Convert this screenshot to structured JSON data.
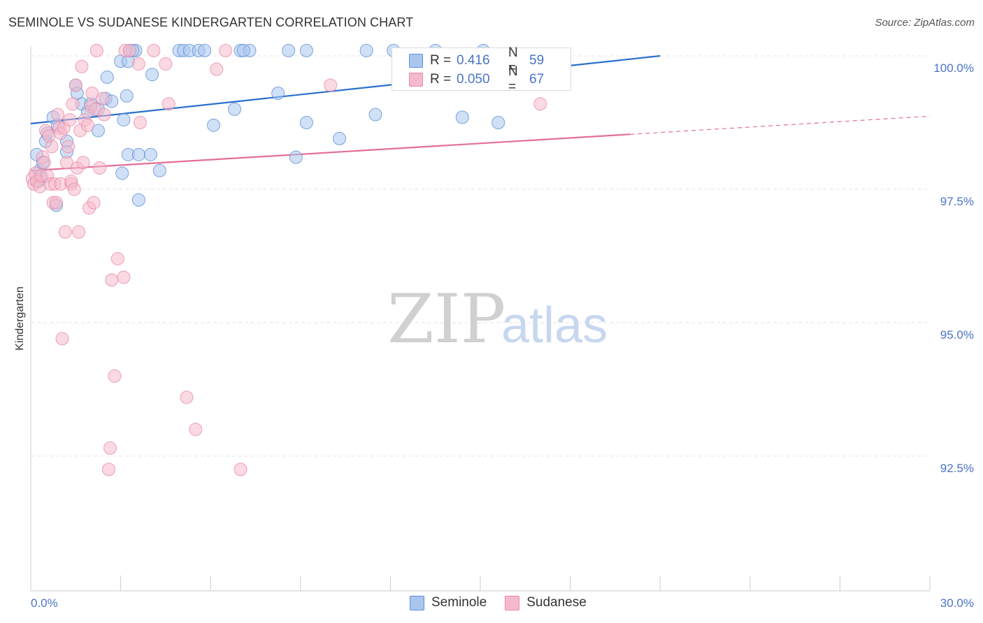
{
  "title": "SEMINOLE VS SUDANESE KINDERGARTEN CORRELATION CHART",
  "source": "Source: ZipAtlas.com",
  "watermark": {
    "zip": "ZIP",
    "atlas": "atlas"
  },
  "colors": {
    "seminole_fill": "#a9c6ef",
    "seminole_stroke": "#5e8ed6",
    "seminole_line": "#2a6fcd",
    "sudanese_fill": "#f6b9cb",
    "sudanese_stroke": "#e88aa6",
    "sudanese_line": "#e36e98",
    "grid": "#e3e3e3",
    "tick_text": "#4a74c9"
  },
  "legend": {
    "rows": [
      {
        "r_label": "R =",
        "r_value": "0.416",
        "n_label": "N =",
        "n_value": "59"
      },
      {
        "r_label": "R =",
        "r_value": "0.050",
        "n_label": "N =",
        "n_value": "67"
      }
    ]
  },
  "bottom_legend": {
    "items": [
      "Seminole",
      "Sudanese"
    ]
  },
  "chart_data": {
    "type": "scatter",
    "title": "SEMINOLE VS SUDANESE KINDERGARTEN CORRELATION CHART",
    "xlabel": "",
    "ylabel": "Kindergarten",
    "xlim": [
      0,
      30
    ],
    "ylim": [
      90.15,
      100.55
    ],
    "x_tick_labels": [
      "0.0%",
      "30.0%"
    ],
    "y_ticks": [
      100.0,
      97.5,
      95.0,
      92.5
    ],
    "y_tick_labels": [
      "100.0%",
      "97.5%",
      "95.0%",
      "92.5%"
    ],
    "grid": true,
    "series": [
      {
        "name": "Seminole",
        "r": 0.416,
        "n": 59,
        "trend": {
          "x0": 0.0,
          "y0": 98.73,
          "x1": 21.0,
          "y1": 100.0,
          "solid_until": 21.0
        },
        "points": [
          [
            0.2,
            98.15
          ],
          [
            0.3,
            97.85
          ],
          [
            0.35,
            97.7
          ],
          [
            0.25,
            97.65
          ],
          [
            0.4,
            98.0
          ],
          [
            0.5,
            98.4
          ],
          [
            0.55,
            98.55
          ],
          [
            0.75,
            98.85
          ],
          [
            0.9,
            98.7
          ],
          [
            0.85,
            97.2
          ],
          [
            1.2,
            98.4
          ],
          [
            1.2,
            98.2
          ],
          [
            1.5,
            99.45
          ],
          [
            1.55,
            99.3
          ],
          [
            1.7,
            99.1
          ],
          [
            1.9,
            98.95
          ],
          [
            2.0,
            99.1
          ],
          [
            2.25,
            99.0
          ],
          [
            2.25,
            98.6
          ],
          [
            2.5,
            99.2
          ],
          [
            2.55,
            99.6
          ],
          [
            2.7,
            99.15
          ],
          [
            3.1,
            98.8
          ],
          [
            3.0,
            99.9
          ],
          [
            3.05,
            97.8
          ],
          [
            3.2,
            99.25
          ],
          [
            3.25,
            98.15
          ],
          [
            3.25,
            99.9
          ],
          [
            3.3,
            100.1
          ],
          [
            3.5,
            100.1
          ],
          [
            3.6,
            98.15
          ],
          [
            3.4,
            100.1
          ],
          [
            3.6,
            97.3
          ],
          [
            4.0,
            98.15
          ],
          [
            4.05,
            99.65
          ],
          [
            4.3,
            97.85
          ],
          [
            4.95,
            100.1
          ],
          [
            5.1,
            100.1
          ],
          [
            5.3,
            100.1
          ],
          [
            5.6,
            100.1
          ],
          [
            5.8,
            100.1
          ],
          [
            6.1,
            98.7
          ],
          [
            6.8,
            99.0
          ],
          [
            7.0,
            100.1
          ],
          [
            7.3,
            100.1
          ],
          [
            7.1,
            100.1
          ],
          [
            8.25,
            99.3
          ],
          [
            8.6,
            100.1
          ],
          [
            8.85,
            98.1
          ],
          [
            9.2,
            98.75
          ],
          [
            9.2,
            100.1
          ],
          [
            10.3,
            98.45
          ],
          [
            11.2,
            100.1
          ],
          [
            11.5,
            98.9
          ],
          [
            12.1,
            100.1
          ],
          [
            13.5,
            100.1
          ],
          [
            14.4,
            98.85
          ],
          [
            15.1,
            100.1
          ],
          [
            15.6,
            98.75
          ]
        ]
      },
      {
        "name": "Sudanese",
        "r": 0.05,
        "n": 67,
        "trend": {
          "x0": 0.0,
          "y0": 97.85,
          "x1": 30.0,
          "y1": 98.87,
          "solid_until": 20.0
        },
        "points": [
          [
            0.05,
            97.7
          ],
          [
            0.1,
            97.6
          ],
          [
            0.15,
            97.8
          ],
          [
            0.2,
            97.65
          ],
          [
            0.3,
            97.55
          ],
          [
            0.35,
            97.75
          ],
          [
            0.4,
            98.1
          ],
          [
            0.45,
            98.0
          ],
          [
            0.5,
            98.6
          ],
          [
            0.55,
            97.75
          ],
          [
            0.6,
            98.5
          ],
          [
            0.65,
            97.6
          ],
          [
            0.7,
            98.3
          ],
          [
            0.75,
            97.25
          ],
          [
            0.8,
            97.6
          ],
          [
            0.85,
            97.25
          ],
          [
            0.9,
            98.9
          ],
          [
            0.95,
            98.65
          ],
          [
            1.0,
            97.6
          ],
          [
            1.0,
            98.55
          ],
          [
            1.05,
            94.7
          ],
          [
            1.1,
            98.65
          ],
          [
            1.15,
            96.7
          ],
          [
            1.2,
            98.0
          ],
          [
            1.25,
            98.3
          ],
          [
            1.3,
            98.8
          ],
          [
            1.35,
            97.6
          ],
          [
            1.35,
            97.65
          ],
          [
            1.4,
            99.1
          ],
          [
            1.45,
            97.5
          ],
          [
            1.5,
            99.45
          ],
          [
            1.55,
            97.9
          ],
          [
            1.6,
            96.7
          ],
          [
            1.65,
            98.6
          ],
          [
            1.7,
            99.8
          ],
          [
            1.75,
            98.0
          ],
          [
            1.8,
            98.8
          ],
          [
            1.9,
            98.7
          ],
          [
            1.95,
            97.15
          ],
          [
            2.0,
            99.05
          ],
          [
            2.05,
            99.3
          ],
          [
            2.1,
            97.25
          ],
          [
            2.15,
            99.0
          ],
          [
            2.2,
            100.1
          ],
          [
            2.3,
            97.9
          ],
          [
            2.4,
            99.2
          ],
          [
            2.45,
            98.9
          ],
          [
            2.6,
            92.25
          ],
          [
            2.65,
            92.65
          ],
          [
            2.7,
            95.8
          ],
          [
            2.8,
            94.0
          ],
          [
            2.9,
            96.2
          ],
          [
            3.1,
            95.85
          ],
          [
            3.15,
            100.1
          ],
          [
            3.3,
            100.1
          ],
          [
            3.6,
            99.85
          ],
          [
            3.65,
            98.75
          ],
          [
            4.1,
            100.1
          ],
          [
            4.5,
            99.85
          ],
          [
            4.6,
            99.1
          ],
          [
            5.2,
            93.6
          ],
          [
            5.5,
            93.0
          ],
          [
            6.2,
            99.75
          ],
          [
            6.5,
            100.1
          ],
          [
            7.0,
            92.25
          ],
          [
            10.0,
            99.45
          ],
          [
            17.0,
            99.1
          ]
        ]
      }
    ]
  }
}
